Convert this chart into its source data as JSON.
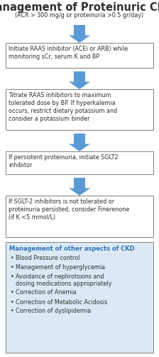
{
  "title": "Management of Proteinuric CKD",
  "subtitle": "(ACR > 300 mg/g or proteinuria >0.5 gr/day)",
  "boxes": [
    "Initiate RAAS inhibitor (ACEi or ARB) while\nmonitoring sCr, serum K and BP",
    "Titrate RAAS inhibitors to maximum\ntolerated dose by BP. If hyperkalemia\noccurs, restrict dietary potassium and\nconsider a potassium binder",
    "If persistent proteinuria, initiate SGLT2\ninhibitor",
    "If SGLT-2 inhibitors is not tolerated or\nproteinuria persisted, consider Finerenone\n(if K <5 mmol/L)"
  ],
  "bottom_box_title": "Management of other aspects of CKD",
  "bottom_box_items": [
    "Blood Pressure control",
    "Management of hyperglycemia",
    "Avoidance of nephrotoxins and\ndosing medications appropriately",
    "Correction of Anemia",
    "Correction of Metabolic Acidosis",
    "Correction of dyslipidemia"
  ],
  "arrow_color": "#5B9BD5",
  "box_edge_color": "#808080",
  "bottom_box_bg": "#DCE9F5",
  "bottom_box_title_color": "#2E75B6",
  "text_color": "#303030",
  "background_color": "#ffffff"
}
